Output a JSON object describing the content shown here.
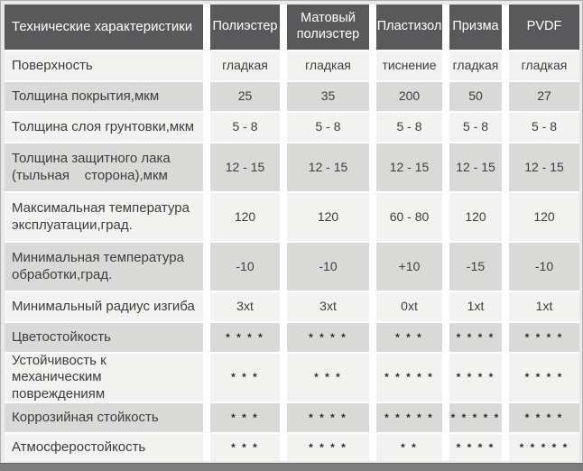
{
  "table": {
    "header": {
      "label": "Технические характеристики",
      "columns": [
        "Полиэстер",
        "Матовый полиэстер",
        "Пластизол",
        "Призма",
        "PVDF"
      ]
    },
    "rows": [
      {
        "label": "Поверхность",
        "values": [
          "гладкая",
          "гладкая",
          "тиснение",
          "гладкая",
          "гладкая"
        ]
      },
      {
        "label": "Толщина покрытия,мкм",
        "values": [
          "25",
          "35",
          "200",
          "50",
          "27"
        ]
      },
      {
        "label": "Толщина слоя грунтовки,мкм",
        "values": [
          "5 - 8",
          "5 - 8",
          "5 - 8",
          "5 - 8",
          "5 - 8"
        ]
      },
      {
        "label": "Толщина защитного лака (тыльная    сторона),мкм",
        "values": [
          "12 - 15",
          "12 - 15",
          "12 - 15",
          "12 - 15",
          "12 - 15"
        ]
      },
      {
        "label": "Максимальная температура эксплуатации,град.",
        "values": [
          "120",
          "120",
          "60 - 80",
          "120",
          "120"
        ]
      },
      {
        "label": "Минимальная температура обработки,град.",
        "values": [
          "-10",
          "-10",
          "+10",
          "-15",
          "-10"
        ]
      },
      {
        "label": "Минимальный радиус изгиба",
        "values": [
          "3xt",
          "3xt",
          "0xt",
          "1xt",
          "1xt"
        ]
      },
      {
        "label": "Цветостойкость",
        "values": [
          "* * * *",
          "* * * *",
          "* * *",
          "* * * *",
          "* * * *"
        ]
      },
      {
        "label": "Устойчивость к механическим повреждениям",
        "values": [
          "* * *",
          "* * *",
          "* * * * *",
          "* * * *",
          "* * * *"
        ]
      },
      {
        "label": "Коррозийная стойкость",
        "values": [
          "* * *",
          "* * * *",
          "* * * * *",
          "* * * * *",
          "* * * *"
        ]
      },
      {
        "label": "Атмосферостойкость",
        "values": [
          "* * *",
          "* * * *",
          "* *",
          "* * * *",
          "* * * * *"
        ]
      }
    ],
    "colors": {
      "header_bg": "#59595b",
      "header_text": "#ffffff",
      "row_light": "#f2f2f0",
      "row_dark": "#d9d9d7",
      "gutter": "#ffffff",
      "frame_border": "#b0b0b0",
      "bottom_bar": "#7d7d7d",
      "body_text": "#3d3d3d"
    }
  }
}
